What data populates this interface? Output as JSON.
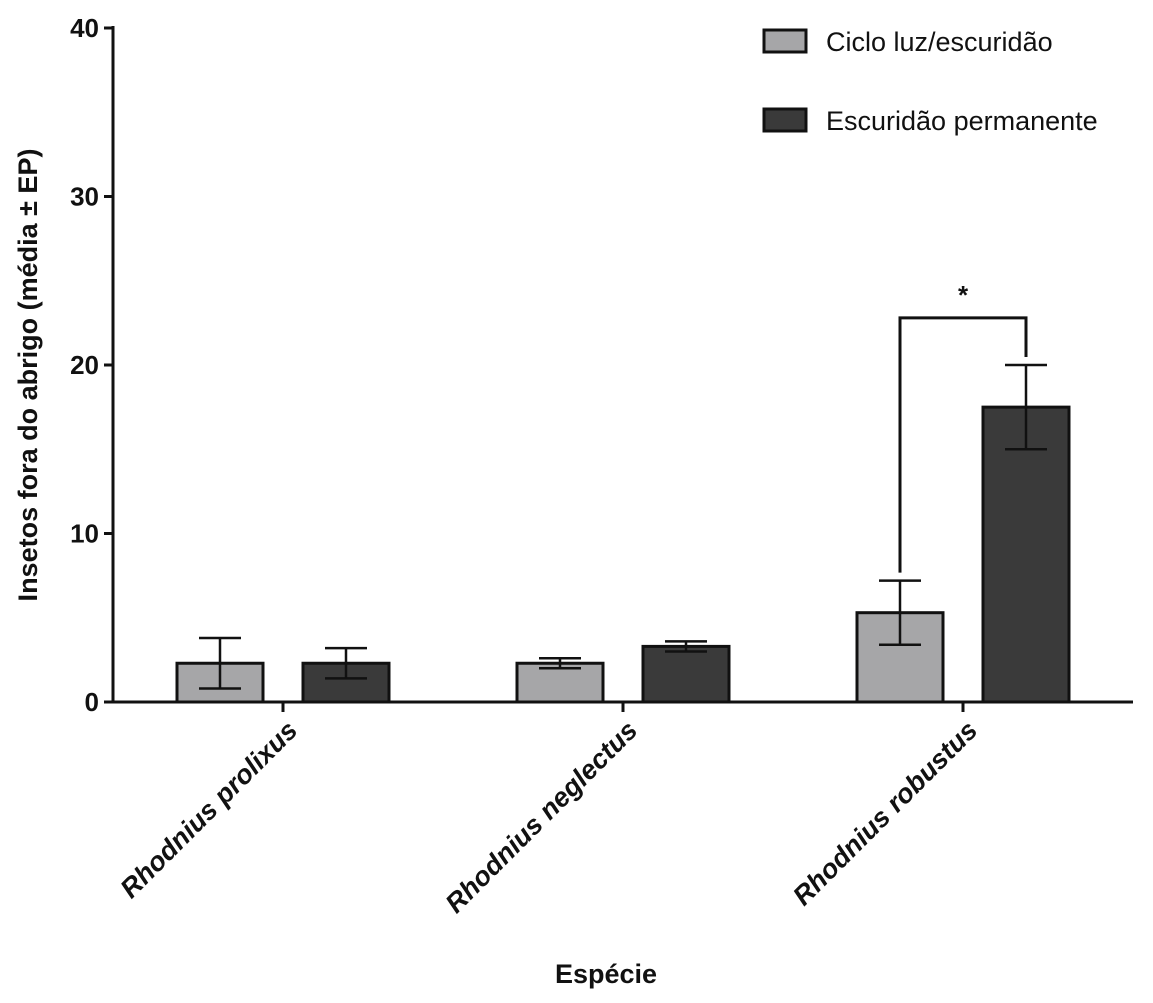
{
  "chart_data": {
    "type": "bar",
    "xlabel": "Espécie",
    "ylabel": "Insetos fora do abrigo (média ± EP)",
    "ylim": [
      0,
      40
    ],
    "yticks": [
      0,
      10,
      20,
      30,
      40
    ],
    "categories": [
      "Rhodnius prolixus",
      "Rhodnius neglectus",
      "Rhodnius robustus"
    ],
    "series": [
      {
        "name": "Ciclo luz/escuridão",
        "color": "#a6a6a8",
        "values": [
          2.3,
          2.3,
          5.3
        ],
        "errors": [
          1.5,
          0.3,
          1.9
        ]
      },
      {
        "name": "Escuridão permanente",
        "color": "#3a3a3a",
        "values": [
          2.3,
          3.3,
          17.5
        ],
        "errors": [
          0.9,
          0.3,
          2.5
        ]
      }
    ],
    "legend": "top-right",
    "grid": false,
    "annotations": [
      {
        "text": "*",
        "category_index": 2,
        "bracket_between_series": [
          0,
          1
        ],
        "y": 22.8
      }
    ]
  }
}
